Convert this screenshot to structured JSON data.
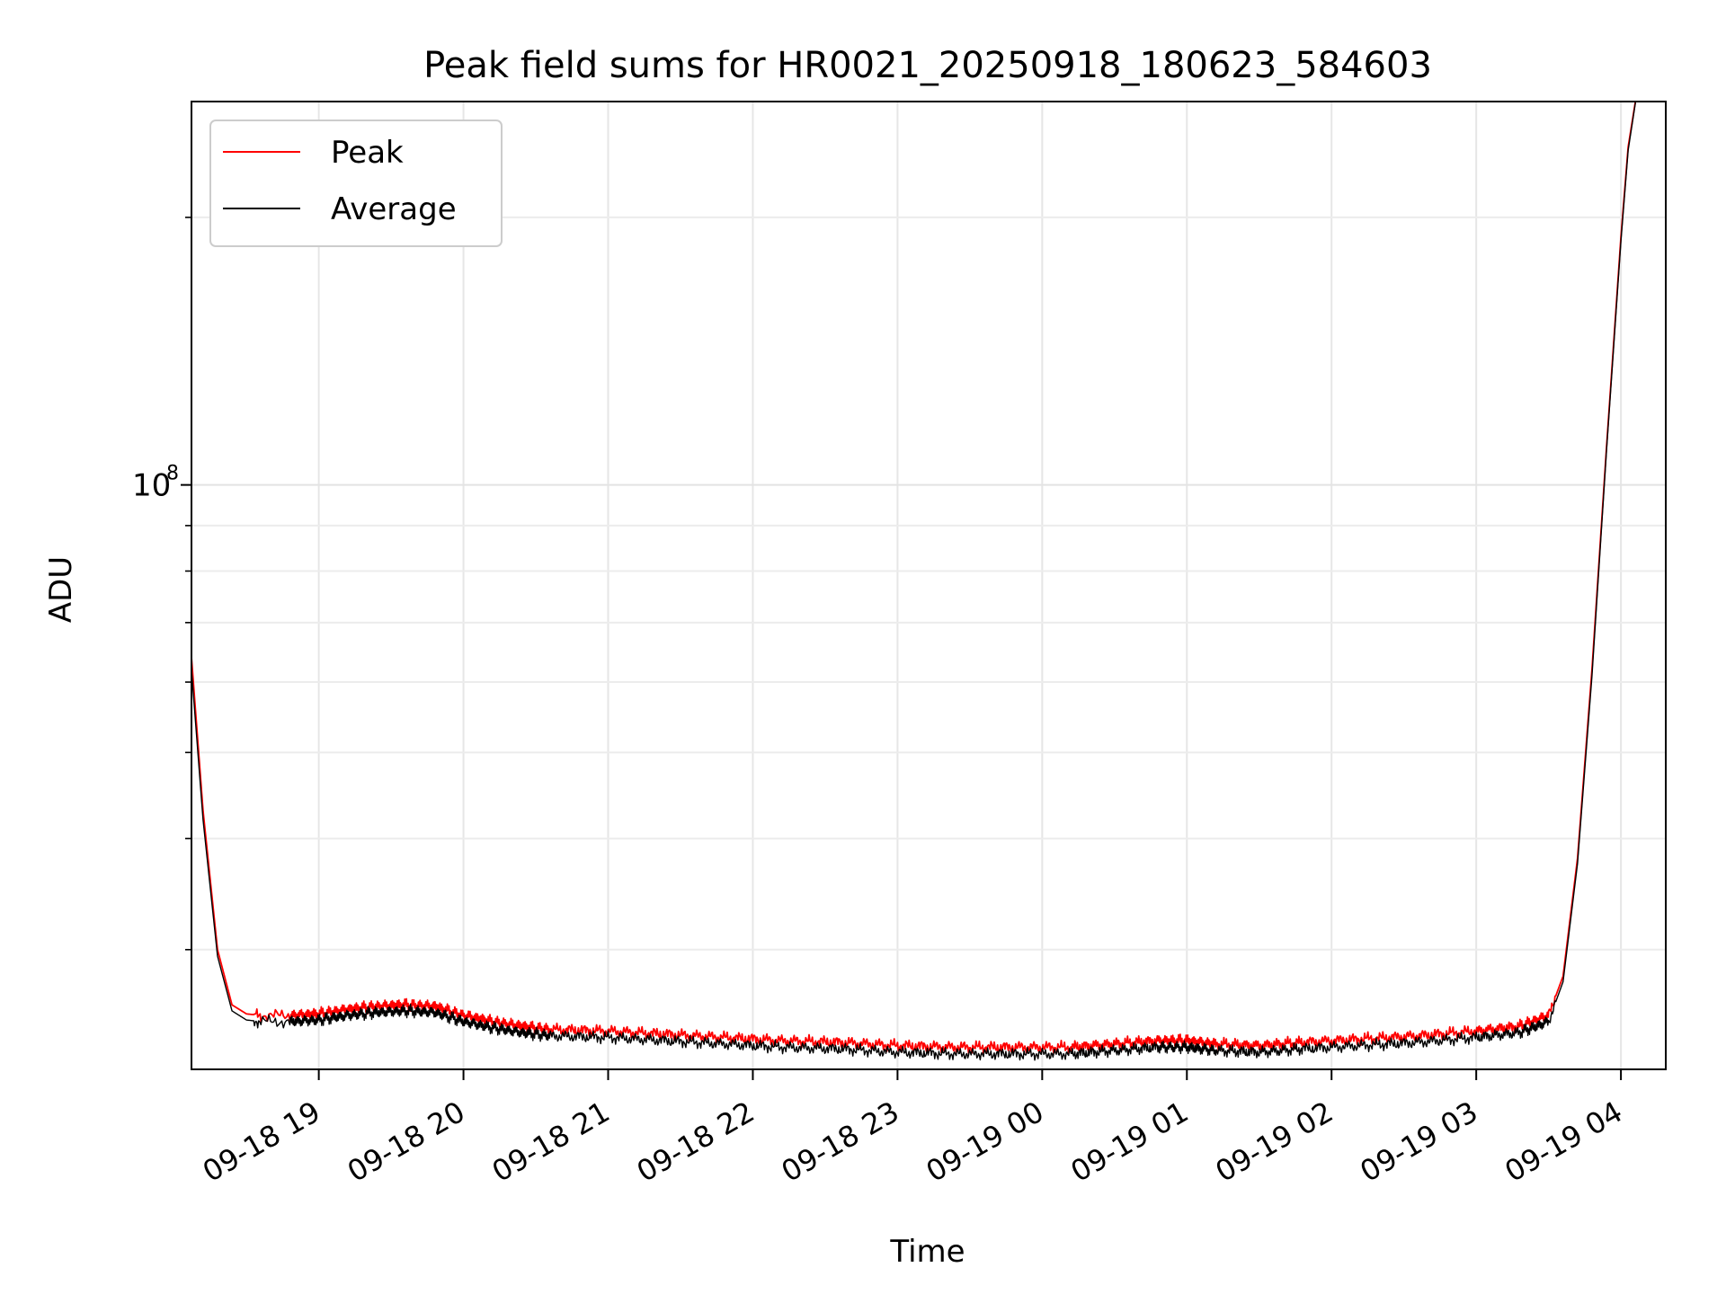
{
  "chart_data": {
    "type": "line",
    "title": "Peak field sums for HR0021_20250918_180623_584603",
    "xlabel": "Time",
    "ylabel": "ADU",
    "y_scale": "log",
    "ylim": [
      22000000,
      270000000
    ],
    "xlim_hours": [
      18.12,
      28.31
    ],
    "x_tick_labels": [
      "09-18 19",
      "09-18 20",
      "09-18 21",
      "09-18 22",
      "09-18 23",
      "09-19 00",
      "09-19 01",
      "09-19 02",
      "09-19 03",
      "09-19 04"
    ],
    "x_tick_hours": [
      19,
      20,
      21,
      22,
      23,
      24,
      25,
      26,
      27,
      28
    ],
    "y_major_ticks": [
      {
        "value": 100000000,
        "base": "10",
        "exponent": "8"
      }
    ],
    "y_minor_ticks": [
      30000000,
      40000000,
      50000000,
      60000000,
      70000000,
      80000000,
      90000000,
      200000000
    ],
    "grid": true,
    "legend_position": "top-left",
    "series": [
      {
        "name": "Peak",
        "color": "#ff0000",
        "x_hours": [
          18.12,
          18.2,
          18.3,
          18.4,
          18.5,
          18.6,
          18.8,
          19.0,
          19.2,
          19.4,
          19.6,
          19.8,
          20.0,
          20.2,
          20.4,
          20.6,
          21.0,
          21.4,
          21.8,
          22.2,
          22.6,
          23.0,
          23.4,
          23.8,
          24.2,
          24.5,
          24.8,
          25.0,
          25.2,
          25.5,
          25.8,
          26.2,
          26.6,
          27.0,
          27.3,
          27.5,
          27.6,
          27.7,
          27.8,
          27.9,
          28.0,
          28.05,
          28.1
        ],
        "values": [
          64000000,
          43000000,
          30000000,
          26000000,
          25400000,
          25300000,
          25300000,
          25400000,
          25700000,
          25900000,
          26000000,
          25900000,
          25300000,
          24900000,
          24600000,
          24400000,
          24300000,
          24100000,
          23900000,
          23700000,
          23600000,
          23400000,
          23300000,
          23300000,
          23300000,
          23500000,
          23700000,
          23700000,
          23500000,
          23400000,
          23600000,
          23800000,
          24000000,
          24300000,
          24600000,
          25300000,
          28000000,
          38000000,
          62000000,
          110000000,
          190000000,
          240000000,
          270000000
        ]
      },
      {
        "name": "Average",
        "color": "#000000",
        "x_hours": [
          18.12,
          18.2,
          18.3,
          18.4,
          18.5,
          18.6,
          18.8,
          19.0,
          19.2,
          19.4,
          19.6,
          19.8,
          20.0,
          20.2,
          20.4,
          20.6,
          21.0,
          21.4,
          21.8,
          22.2,
          22.6,
          23.0,
          23.4,
          23.8,
          24.2,
          24.5,
          24.8,
          25.0,
          25.2,
          25.5,
          25.8,
          26.2,
          26.6,
          27.0,
          27.3,
          27.5,
          27.6,
          27.7,
          27.8,
          27.9,
          28.0,
          28.05,
          28.1
        ],
        "values": [
          62000000,
          42000000,
          29500000,
          25600000,
          25000000,
          24900000,
          24900000,
          25000000,
          25300000,
          25500000,
          25600000,
          25500000,
          24900000,
          24500000,
          24200000,
          24000000,
          23900000,
          23700000,
          23500000,
          23300000,
          23200000,
          23000000,
          22900000,
          22900000,
          22900000,
          23100000,
          23300000,
          23300000,
          23100000,
          23000000,
          23200000,
          23400000,
          23600000,
          23900000,
          24200000,
          24900000,
          27600000,
          37500000,
          61000000,
          109000000,
          188000000,
          238000000,
          269000000
        ]
      }
    ]
  }
}
